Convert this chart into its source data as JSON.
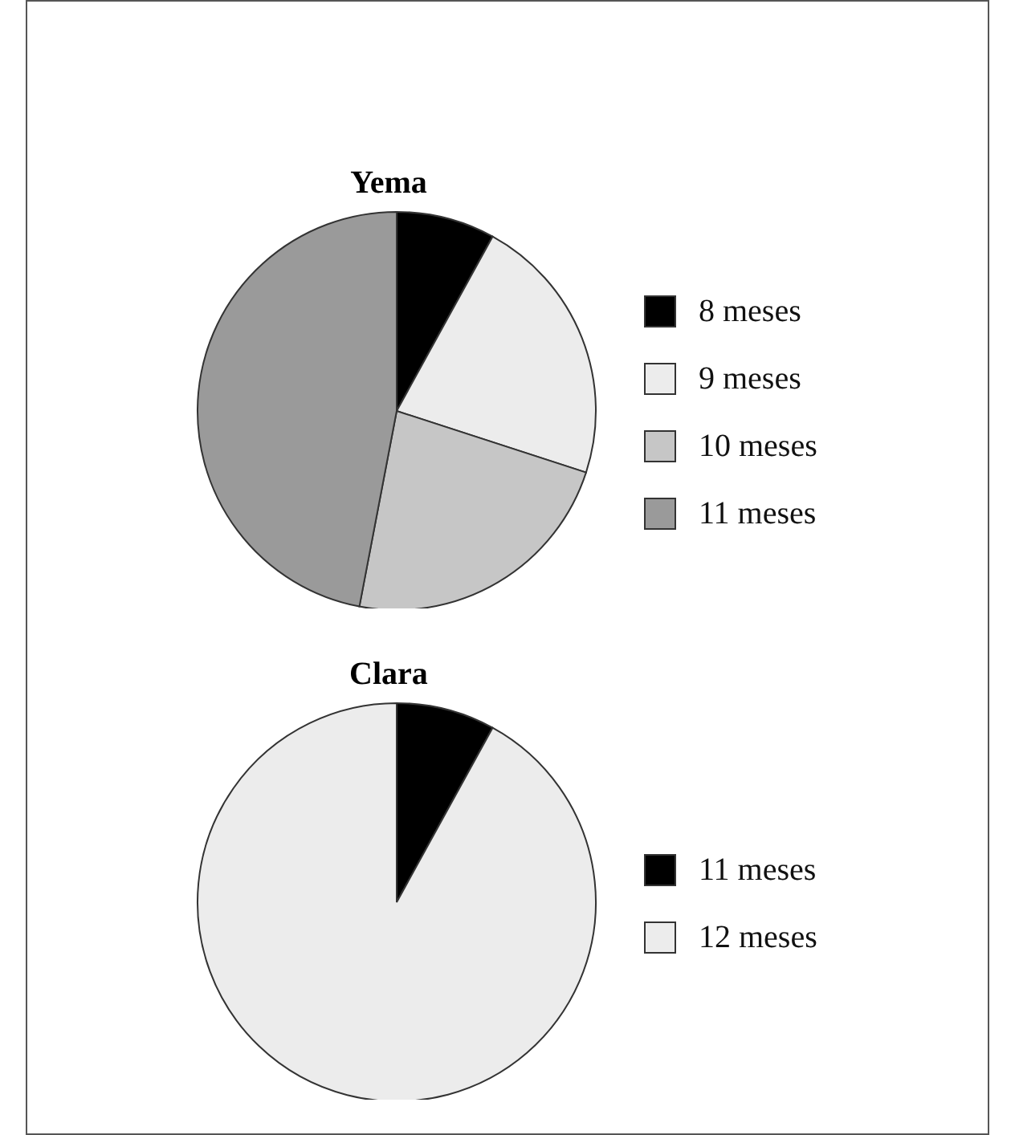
{
  "chart_data": [
    {
      "type": "pie",
      "title": "Yema",
      "categories": [
        "8 meses",
        "9 meses",
        "10 meses",
        "11 meses"
      ],
      "values": [
        8,
        22,
        23,
        47
      ],
      "colors": [
        "#000000",
        "#ececec",
        "#c6c6c6",
        "#9a9a9a"
      ],
      "legend": "right"
    },
    {
      "type": "pie",
      "title": "Clara",
      "categories": [
        "11 meses",
        "12 meses"
      ],
      "values": [
        8,
        92
      ],
      "colors": [
        "#000000",
        "#ececec"
      ],
      "legend": "right"
    }
  ]
}
